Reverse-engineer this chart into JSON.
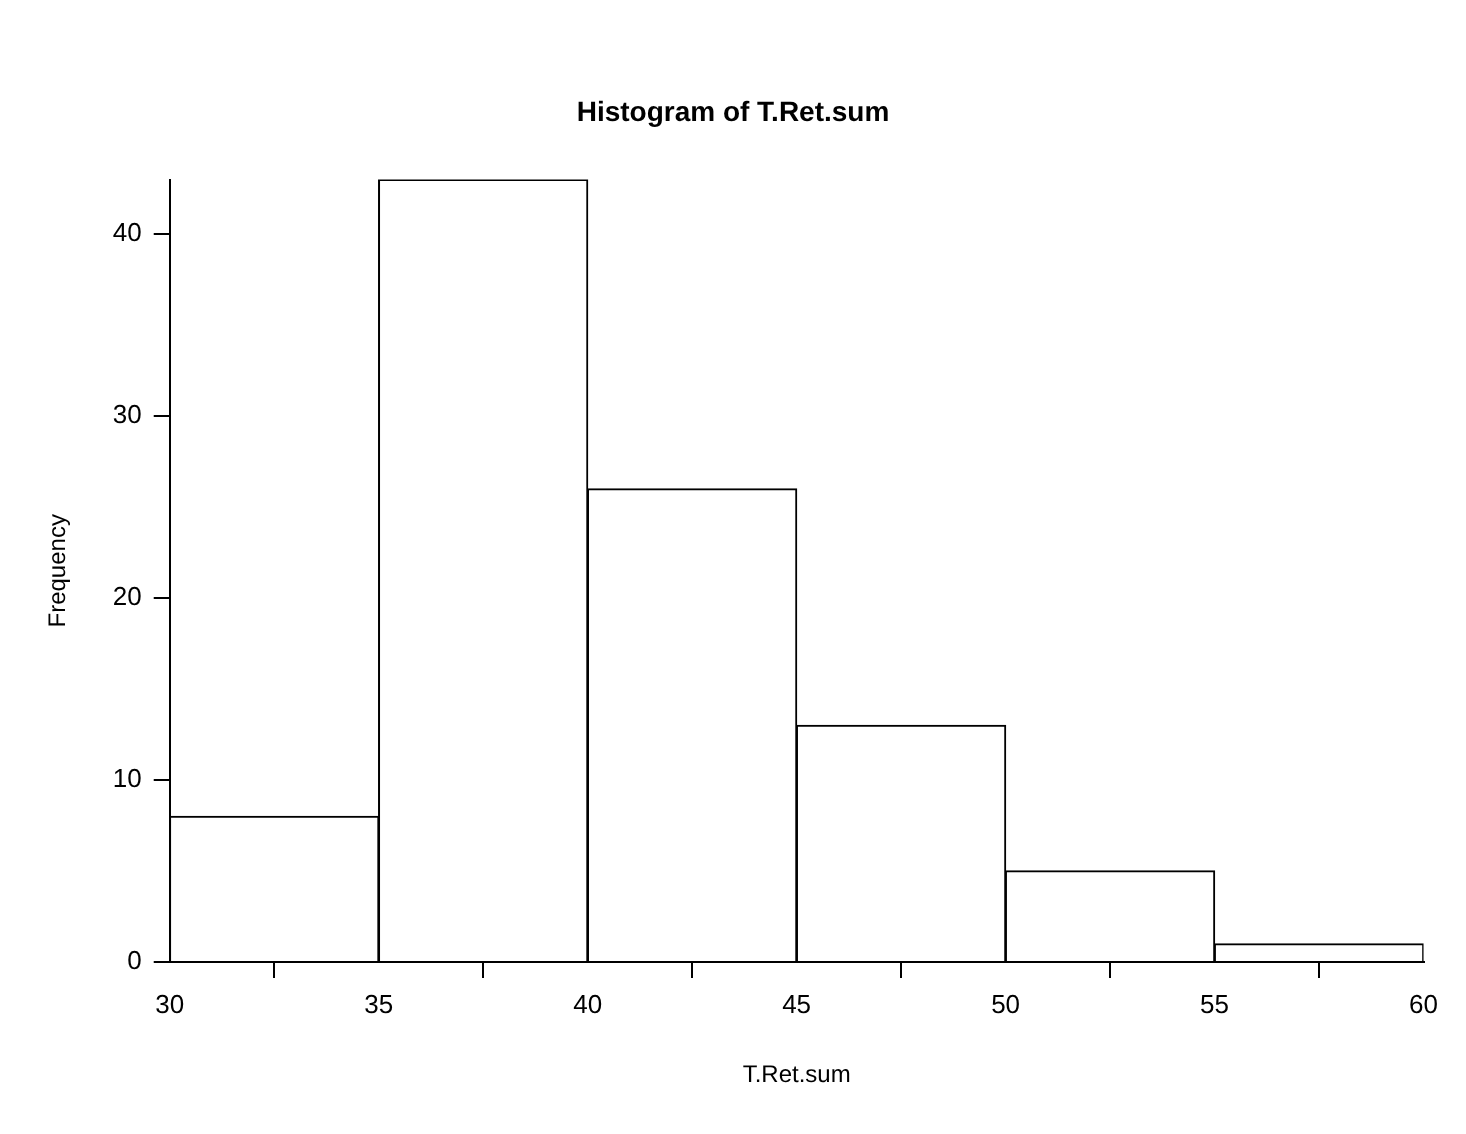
{
  "chart_data": {
    "type": "histogram",
    "title": "Histogram of T.Ret.sum",
    "xlabel": "T.Ret.sum",
    "ylabel": "Frequency",
    "bins": [
      30,
      35,
      40,
      45,
      50,
      55,
      60
    ],
    "values": [
      8,
      43,
      26,
      13,
      5,
      1
    ],
    "color": "#ffffff",
    "xlim": [
      30,
      60
    ],
    "xticks": [
      30,
      35,
      40,
      45,
      50,
      55,
      60
    ],
    "ylim": [
      0,
      43
    ],
    "yticks": [
      0,
      10,
      20,
      30,
      40
    ]
  }
}
